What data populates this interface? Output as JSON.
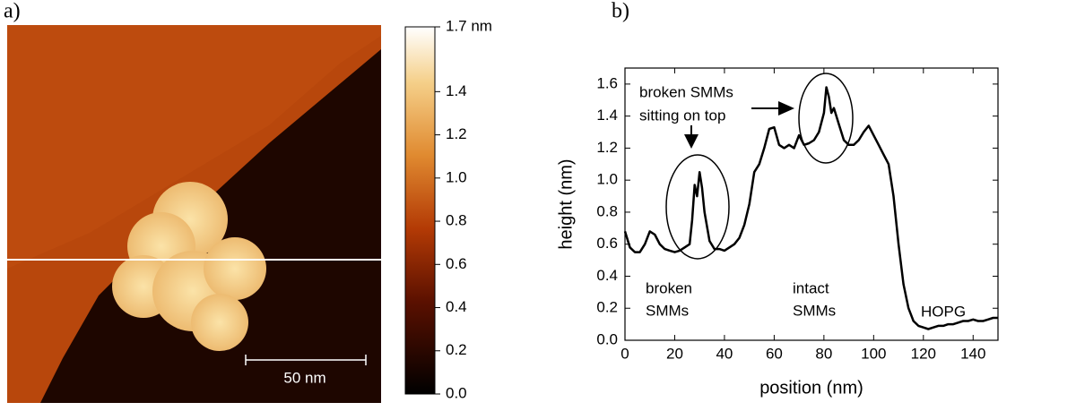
{
  "chart_data": [
    {
      "type": "image",
      "panel_label": "a)",
      "clim": [
        0,
        1.7
      ],
      "cticks": [
        {
          "value": 0,
          "label": "0.0"
        },
        0.2,
        0.4,
        0.6,
        0.8,
        {
          "value": 1,
          "label": "1.0"
        },
        1.2,
        1.4,
        {
          "value": 1.7,
          "label": "1.7 nm"
        }
      ],
      "scale_bar_label": "50 nm"
    },
    {
      "type": "line",
      "panel_label": "b)",
      "xlabel": "position (nm)",
      "ylabel": "height (nm)",
      "x": [
        0,
        2,
        4,
        6,
        8,
        10,
        12,
        14,
        16,
        18,
        20,
        22,
        24,
        26,
        27,
        28,
        29,
        30,
        31,
        32,
        34,
        36,
        38,
        40,
        42,
        44,
        46,
        48,
        50,
        52,
        54,
        56,
        58,
        60,
        62,
        64,
        66,
        68,
        70,
        72,
        74,
        76,
        78,
        80,
        81,
        82,
        83,
        84,
        86,
        88,
        90,
        92,
        94,
        96,
        98,
        100,
        102,
        104,
        106,
        108,
        110,
        112,
        114,
        116,
        118,
        120,
        122,
        124,
        126,
        128,
        130,
        132,
        134,
        136,
        138,
        140,
        142,
        144,
        146,
        148,
        150
      ],
      "values": [
        0.68,
        0.58,
        0.55,
        0.55,
        0.6,
        0.68,
        0.66,
        0.6,
        0.57,
        0.56,
        0.55,
        0.56,
        0.58,
        0.6,
        0.75,
        0.97,
        0.9,
        1.05,
        0.95,
        0.8,
        0.62,
        0.57,
        0.57,
        0.56,
        0.58,
        0.6,
        0.64,
        0.72,
        0.85,
        1.05,
        1.1,
        1.2,
        1.32,
        1.33,
        1.22,
        1.2,
        1.22,
        1.2,
        1.28,
        1.22,
        1.23,
        1.25,
        1.3,
        1.42,
        1.58,
        1.52,
        1.42,
        1.45,
        1.35,
        1.25,
        1.22,
        1.22,
        1.25,
        1.3,
        1.34,
        1.28,
        1.22,
        1.16,
        1.1,
        0.9,
        0.6,
        0.35,
        0.2,
        0.12,
        0.09,
        0.08,
        0.07,
        0.08,
        0.09,
        0.09,
        0.1,
        0.1,
        0.11,
        0.12,
        0.12,
        0.13,
        0.12,
        0.12,
        0.13,
        0.14,
        0.14
      ],
      "color": "#000000",
      "xlim": [
        0,
        150
      ],
      "ylim": [
        0,
        1.7
      ],
      "xticks": [
        0,
        20,
        40,
        60,
        80,
        100,
        120,
        140
      ],
      "yticks": [
        {
          "value": 0,
          "label": "0.0"
        },
        0.2,
        0.4,
        0.6,
        0.8,
        {
          "value": 1,
          "label": "1.0"
        },
        1.2,
        1.4,
        1.6
      ],
      "annotations": [
        "broken SMMs",
        "sitting on top",
        "broken",
        "SMMs",
        "intact",
        "SMMs",
        "HOPG"
      ]
    }
  ]
}
